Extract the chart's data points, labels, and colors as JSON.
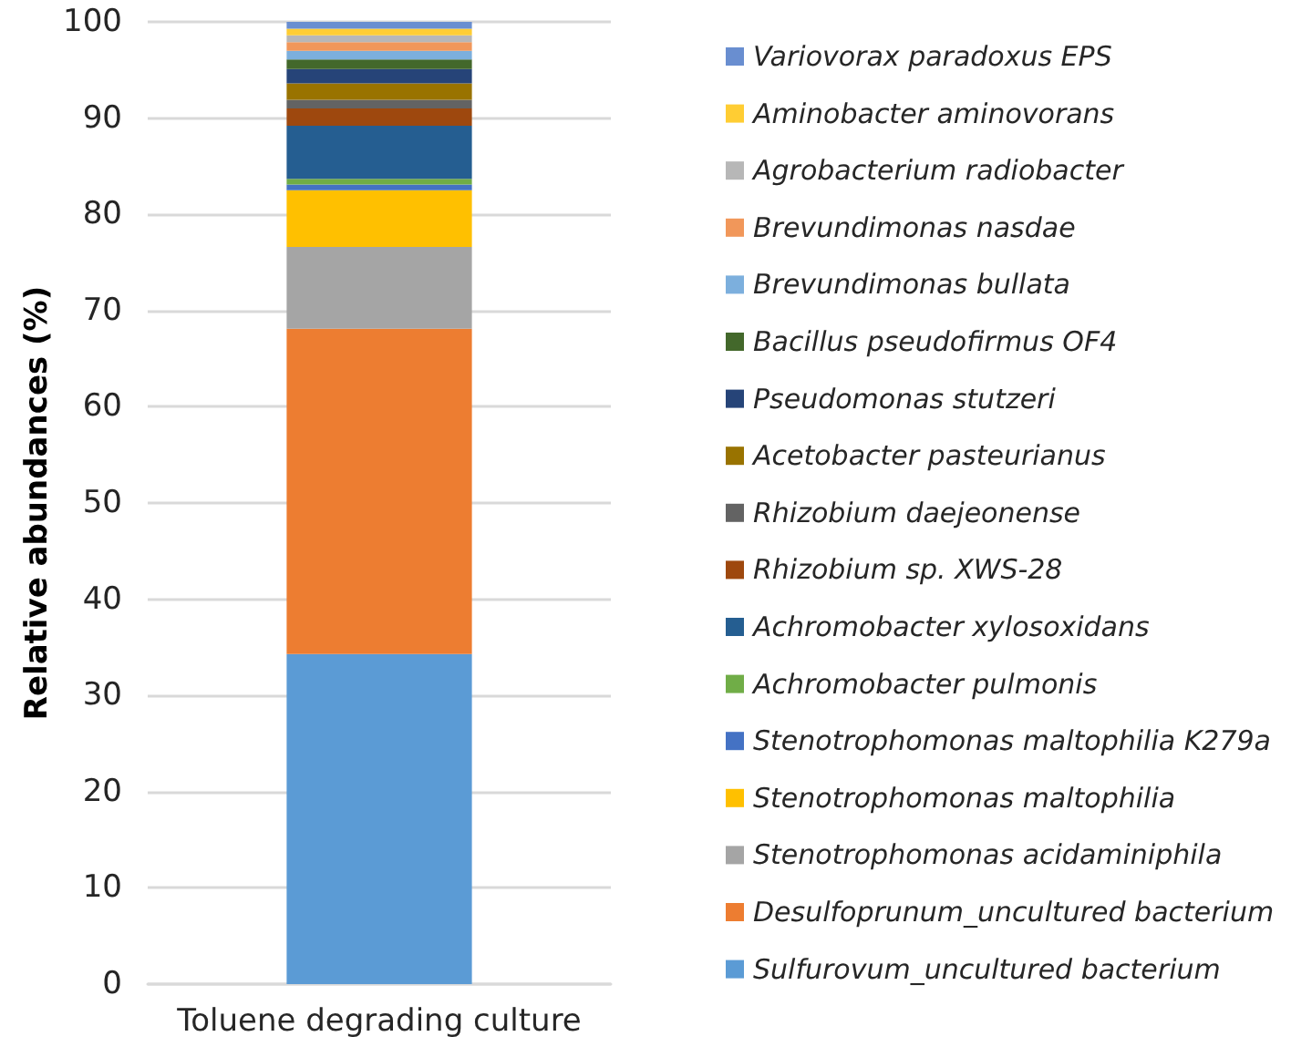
{
  "chart_data": {
    "type": "bar",
    "stacked": true,
    "categories": [
      "Toluene degrading culture"
    ],
    "ylabel": "Relative abundances (%)",
    "ylim": [
      0,
      100
    ],
    "yticks": [
      0,
      10,
      20,
      30,
      40,
      50,
      60,
      70,
      80,
      90,
      100
    ],
    "grid": "y",
    "legend": "right",
    "series": [
      {
        "name": "Sulfurovum_uncultured bacterium",
        "color": "#5b9bd5",
        "values": [
          34.3
        ]
      },
      {
        "name": "Desulfoprunum_uncultured bacterium",
        "color": "#ed7d31",
        "values": [
          33.8
        ]
      },
      {
        "name": "Stenotrophomonas acidaminiphila",
        "color": "#a5a5a5",
        "values": [
          8.5
        ]
      },
      {
        "name": "Stenotrophomonas maltophilia",
        "color": "#ffc000",
        "values": [
          5.9
        ]
      },
      {
        "name": "Stenotrophomonas maltophilia K279a",
        "color": "#4472c4",
        "values": [
          0.6
        ]
      },
      {
        "name": "Achromobacter pulmonis",
        "color": "#70ad47",
        "values": [
          0.6
        ]
      },
      {
        "name": "Achromobacter xylosoxidans",
        "color": "#255e91",
        "values": [
          5.5
        ]
      },
      {
        "name": "Rhizobium sp. XWS-28",
        "color": "#9e480e",
        "values": [
          1.8
        ]
      },
      {
        "name": "Rhizobium daejeonense",
        "color": "#636363",
        "values": [
          0.9
        ]
      },
      {
        "name": "Acetobacter pasteurianus",
        "color": "#997300",
        "values": [
          1.7
        ]
      },
      {
        "name": "Pseudomonas stutzeri",
        "color": "#264478",
        "values": [
          1.5
        ]
      },
      {
        "name": "Bacillus pseudofirmus OF4",
        "color": "#43682b",
        "values": [
          1.0
        ]
      },
      {
        "name": "Brevundimonas bullata",
        "color": "#7cafdd",
        "values": [
          0.9
        ]
      },
      {
        "name": "Brevundimonas nasdae",
        "color": "#f1975a",
        "values": [
          0.9
        ]
      },
      {
        "name": "Agrobacterium radiobacter",
        "color": "#b7b7b7",
        "values": [
          0.7
        ]
      },
      {
        "name": "Aminobacter aminovorans",
        "color": "#ffcd33",
        "values": [
          0.7
        ]
      },
      {
        "name": "Variovorax paradoxus EPS",
        "color": "#698ed0",
        "values": [
          0.7
        ]
      }
    ]
  }
}
